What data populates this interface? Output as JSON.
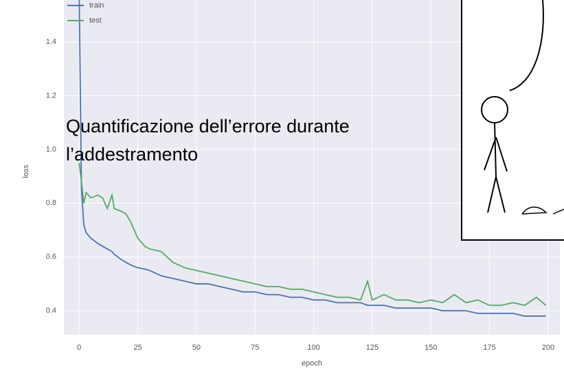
{
  "chart_data": {
    "type": "line",
    "xlabel": "epoch",
    "ylabel": "loss",
    "annotation": [
      "Quantificazione dell’errore durante",
      "l’addestramento"
    ],
    "x": [
      0,
      1,
      2,
      3,
      5,
      8,
      10,
      12,
      14,
      15,
      18,
      20,
      22,
      25,
      28,
      30,
      35,
      40,
      45,
      50,
      55,
      60,
      65,
      70,
      75,
      80,
      85,
      90,
      95,
      100,
      105,
      110,
      115,
      120,
      123,
      125,
      130,
      135,
      140,
      145,
      150,
      155,
      160,
      165,
      170,
      175,
      180,
      185,
      190,
      195,
      199
    ],
    "series": [
      {
        "name": "train",
        "color": "#4c72b0",
        "values": [
          1.6,
          0.85,
          0.72,
          0.69,
          0.67,
          0.65,
          0.64,
          0.63,
          0.62,
          0.61,
          0.59,
          0.58,
          0.57,
          0.56,
          0.555,
          0.55,
          0.53,
          0.52,
          0.51,
          0.5,
          0.5,
          0.49,
          0.48,
          0.47,
          0.47,
          0.46,
          0.46,
          0.45,
          0.45,
          0.44,
          0.44,
          0.43,
          0.43,
          0.43,
          0.42,
          0.42,
          0.42,
          0.41,
          0.41,
          0.41,
          0.41,
          0.4,
          0.4,
          0.4,
          0.39,
          0.39,
          0.39,
          0.39,
          0.38,
          0.38,
          0.38
        ]
      },
      {
        "name": "test",
        "color": "#55a868",
        "values": [
          0.95,
          0.88,
          0.8,
          0.84,
          0.82,
          0.83,
          0.82,
          0.78,
          0.83,
          0.78,
          0.77,
          0.76,
          0.73,
          0.67,
          0.64,
          0.63,
          0.62,
          0.58,
          0.56,
          0.55,
          0.54,
          0.53,
          0.52,
          0.51,
          0.5,
          0.49,
          0.49,
          0.48,
          0.48,
          0.47,
          0.46,
          0.45,
          0.45,
          0.44,
          0.51,
          0.44,
          0.46,
          0.44,
          0.44,
          0.43,
          0.44,
          0.43,
          0.46,
          0.43,
          0.44,
          0.42,
          0.42,
          0.43,
          0.42,
          0.45,
          0.42
        ]
      }
    ],
    "xlim": [
      -6.5,
      205
    ],
    "ylim": [
      0.311,
      1.556
    ],
    "xticks": [
      0,
      25,
      50,
      75,
      100,
      125,
      150,
      175,
      200
    ],
    "yticks": [
      0.4,
      0.6,
      0.8,
      {
        "value": 1,
        "label": "1.0"
      },
      1.2,
      1.4
    ],
    "grid": true,
    "legend": "upper left"
  }
}
